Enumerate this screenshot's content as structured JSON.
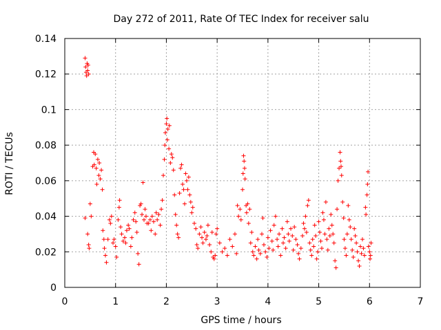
{
  "chart_data": {
    "type": "scatter",
    "title": "Day 272 of 2011, Rate Of TEC Index for receiver salu",
    "xlabel": "GPS time / hours",
    "ylabel": "ROTI / TECUs",
    "xlim": [
      0,
      7
    ],
    "ylim": [
      0,
      0.14
    ],
    "xticks": [
      0,
      1,
      2,
      3,
      4,
      5,
      6,
      7
    ],
    "yticks": [
      0,
      0.02,
      0.04,
      0.06,
      0.08,
      0.1,
      0.12,
      0.14
    ],
    "xtick_labels": [
      "0",
      "1",
      "2",
      "3",
      "4",
      "5",
      "6",
      "7"
    ],
    "ytick_labels": [
      "0",
      "0.02",
      "0.04",
      "0.06",
      "0.08",
      "0.1",
      "0.12",
      "0.14"
    ],
    "grid": true,
    "marker": "+",
    "colors": {
      "points": "#ff0000",
      "grid": "#a0a0a0",
      "frame": "#000000"
    },
    "series": [
      {
        "points": [
          [
            0.4,
            0.129
          ],
          [
            0.41,
            0.124
          ],
          [
            0.42,
            0.121
          ],
          [
            0.43,
            0.119
          ],
          [
            0.44,
            0.126
          ],
          [
            0.45,
            0.122
          ],
          [
            0.46,
            0.125
          ],
          [
            0.47,
            0.12
          ],
          [
            0.4,
            0.039
          ],
          [
            0.45,
            0.03
          ],
          [
            0.47,
            0.024
          ],
          [
            0.48,
            0.022
          ],
          [
            0.5,
            0.047
          ],
          [
            0.52,
            0.04
          ],
          [
            0.55,
            0.068
          ],
          [
            0.57,
            0.076
          ],
          [
            0.58,
            0.069
          ],
          [
            0.6,
            0.075
          ],
          [
            0.62,
            0.067
          ],
          [
            0.63,
            0.058
          ],
          [
            0.65,
            0.072
          ],
          [
            0.67,
            0.063
          ],
          [
            0.68,
            0.07
          ],
          [
            0.7,
            0.061
          ],
          [
            0.72,
            0.066
          ],
          [
            0.74,
            0.055
          ],
          [
            0.75,
            0.032
          ],
          [
            0.77,
            0.027
          ],
          [
            0.78,
            0.022
          ],
          [
            0.8,
            0.018
          ],
          [
            0.82,
            0.014
          ],
          [
            0.85,
            0.027
          ],
          [
            0.88,
            0.038
          ],
          [
            0.9,
            0.036
          ],
          [
            0.92,
            0.04
          ],
          [
            0.95,
            0.025
          ],
          [
            0.97,
            0.027
          ],
          [
            1.0,
            0.023
          ],
          [
            1.02,
            0.017
          ],
          [
            1.05,
            0.038
          ],
          [
            1.07,
            0.045
          ],
          [
            1.08,
            0.049
          ],
          [
            1.1,
            0.034
          ],
          [
            1.12,
            0.03
          ],
          [
            1.15,
            0.026
          ],
          [
            1.18,
            0.028
          ],
          [
            1.2,
            0.025
          ],
          [
            1.22,
            0.032
          ],
          [
            1.25,
            0.035
          ],
          [
            1.27,
            0.033
          ],
          [
            1.3,
            0.023
          ],
          [
            1.32,
            0.028
          ],
          [
            1.35,
            0.038
          ],
          [
            1.38,
            0.042
          ],
          [
            1.4,
            0.037
          ],
          [
            1.42,
            0.031
          ],
          [
            1.44,
            0.019
          ],
          [
            1.46,
            0.013
          ],
          [
            1.48,
            0.046
          ],
          [
            1.5,
            0.047
          ],
          [
            1.52,
            0.041
          ],
          [
            1.54,
            0.059
          ],
          [
            1.56,
            0.038
          ],
          [
            1.58,
            0.044
          ],
          [
            1.6,
            0.04
          ],
          [
            1.62,
            0.036
          ],
          [
            1.65,
            0.036
          ],
          [
            1.68,
            0.038
          ],
          [
            1.7,
            0.032
          ],
          [
            1.72,
            0.04
          ],
          [
            1.75,
            0.037
          ],
          [
            1.78,
            0.03
          ],
          [
            1.8,
            0.042
          ],
          [
            1.82,
            0.038
          ],
          [
            1.85,
            0.041
          ],
          [
            1.88,
            0.035
          ],
          [
            1.9,
            0.044
          ],
          [
            1.92,
            0.049
          ],
          [
            1.94,
            0.063
          ],
          [
            1.96,
            0.072
          ],
          [
            1.97,
            0.08
          ],
          [
            1.98,
            0.087
          ],
          [
            2.0,
            0.092
          ],
          [
            2.01,
            0.095
          ],
          [
            2.02,
            0.083
          ],
          [
            2.03,
            0.089
          ],
          [
            2.05,
            0.078
          ],
          [
            2.06,
            0.091
          ],
          [
            2.08,
            0.07
          ],
          [
            2.1,
            0.075
          ],
          [
            2.12,
            0.073
          ],
          [
            2.14,
            0.066
          ],
          [
            2.16,
            0.052
          ],
          [
            2.18,
            0.041
          ],
          [
            2.2,
            0.035
          ],
          [
            2.22,
            0.03
          ],
          [
            2.24,
            0.028
          ],
          [
            2.26,
            0.053
          ],
          [
            2.28,
            0.067
          ],
          [
            2.3,
            0.069
          ],
          [
            2.32,
            0.058
          ],
          [
            2.34,
            0.055
          ],
          [
            2.36,
            0.047
          ],
          [
            2.38,
            0.064
          ],
          [
            2.4,
            0.06
          ],
          [
            2.42,
            0.055
          ],
          [
            2.44,
            0.062
          ],
          [
            2.46,
            0.052
          ],
          [
            2.48,
            0.048
          ],
          [
            2.5,
            0.042
          ],
          [
            2.52,
            0.045
          ],
          [
            2.55,
            0.036
          ],
          [
            2.58,
            0.033
          ],
          [
            2.6,
            0.024
          ],
          [
            2.62,
            0.022
          ],
          [
            2.65,
            0.03
          ],
          [
            2.68,
            0.034
          ],
          [
            2.7,
            0.028
          ],
          [
            2.72,
            0.025
          ],
          [
            2.75,
            0.031
          ],
          [
            2.78,
            0.027
          ],
          [
            2.8,
            0.029
          ],
          [
            2.82,
            0.035
          ],
          [
            2.85,
            0.024
          ],
          [
            2.88,
            0.02
          ],
          [
            2.9,
            0.031
          ],
          [
            2.92,
            0.017
          ],
          [
            2.94,
            0.016
          ],
          [
            2.96,
            0.018
          ],
          [
            2.98,
            0.03
          ],
          [
            3.0,
            0.033
          ],
          [
            3.05,
            0.025
          ],
          [
            3.1,
            0.02
          ],
          [
            3.15,
            0.022
          ],
          [
            3.2,
            0.018
          ],
          [
            3.25,
            0.027
          ],
          [
            3.3,
            0.023
          ],
          [
            3.35,
            0.03
          ],
          [
            3.38,
            0.019
          ],
          [
            3.4,
            0.046
          ],
          [
            3.42,
            0.04
          ],
          [
            3.45,
            0.044
          ],
          [
            3.47,
            0.038
          ],
          [
            3.5,
            0.055
          ],
          [
            3.51,
            0.064
          ],
          [
            3.52,
            0.074
          ],
          [
            3.53,
            0.071
          ],
          [
            3.54,
            0.067
          ],
          [
            3.55,
            0.061
          ],
          [
            3.57,
            0.046
          ],
          [
            3.58,
            0.042
          ],
          [
            3.6,
            0.047
          ],
          [
            3.62,
            0.036
          ],
          [
            3.64,
            0.044
          ],
          [
            3.66,
            0.025
          ],
          [
            3.68,
            0.031
          ],
          [
            3.7,
            0.02
          ],
          [
            3.72,
            0.018
          ],
          [
            3.75,
            0.023
          ],
          [
            3.78,
            0.016
          ],
          [
            3.8,
            0.027
          ],
          [
            3.82,
            0.021
          ],
          [
            3.85,
            0.019
          ],
          [
            3.88,
            0.03
          ],
          [
            3.9,
            0.039
          ],
          [
            3.92,
            0.024
          ],
          [
            3.95,
            0.02
          ],
          [
            3.98,
            0.017
          ],
          [
            4.0,
            0.028
          ],
          [
            4.02,
            0.022
          ],
          [
            4.05,
            0.032
          ],
          [
            4.08,
            0.026
          ],
          [
            4.1,
            0.021
          ],
          [
            4.12,
            0.035
          ],
          [
            4.15,
            0.04
          ],
          [
            4.18,
            0.027
          ],
          [
            4.2,
            0.023
          ],
          [
            4.22,
            0.03
          ],
          [
            4.25,
            0.018
          ],
          [
            4.28,
            0.033
          ],
          [
            4.3,
            0.025
          ],
          [
            4.32,
            0.028
          ],
          [
            4.35,
            0.022
          ],
          [
            4.38,
            0.037
          ],
          [
            4.4,
            0.03
          ],
          [
            4.42,
            0.026
          ],
          [
            4.45,
            0.033
          ],
          [
            4.48,
            0.029
          ],
          [
            4.5,
            0.021
          ],
          [
            4.52,
            0.034
          ],
          [
            4.55,
            0.027
          ],
          [
            4.58,
            0.024
          ],
          [
            4.6,
            0.019
          ],
          [
            4.62,
            0.016
          ],
          [
            4.65,
            0.022
          ],
          [
            4.68,
            0.029
          ],
          [
            4.7,
            0.036
          ],
          [
            4.72,
            0.033
          ],
          [
            4.74,
            0.04
          ],
          [
            4.76,
            0.031
          ],
          [
            4.78,
            0.046
          ],
          [
            4.8,
            0.049
          ],
          [
            4.82,
            0.025
          ],
          [
            4.84,
            0.021
          ],
          [
            4.86,
            0.018
          ],
          [
            4.88,
            0.027
          ],
          [
            4.9,
            0.023
          ],
          [
            4.92,
            0.035
          ],
          [
            4.94,
            0.029
          ],
          [
            4.96,
            0.016
          ],
          [
            4.98,
            0.02
          ],
          [
            5.0,
            0.037
          ],
          [
            5.02,
            0.031
          ],
          [
            5.04,
            0.026
          ],
          [
            5.06,
            0.022
          ],
          [
            5.08,
            0.042
          ],
          [
            5.1,
            0.038
          ],
          [
            5.12,
            0.03
          ],
          [
            5.14,
            0.048
          ],
          [
            5.16,
            0.027
          ],
          [
            5.18,
            0.021
          ],
          [
            5.2,
            0.033
          ],
          [
            5.22,
            0.029
          ],
          [
            5.24,
            0.041
          ],
          [
            5.26,
            0.035
          ],
          [
            5.28,
            0.03
          ],
          [
            5.3,
            0.025
          ],
          [
            5.32,
            0.015
          ],
          [
            5.34,
            0.011
          ],
          [
            5.36,
            0.044
          ],
          [
            5.38,
            0.06
          ],
          [
            5.4,
            0.067
          ],
          [
            5.42,
            0.076
          ],
          [
            5.43,
            0.071
          ],
          [
            5.44,
            0.068
          ],
          [
            5.45,
            0.063
          ],
          [
            5.47,
            0.048
          ],
          [
            5.49,
            0.039
          ],
          [
            5.5,
            0.027
          ],
          [
            5.52,
            0.022
          ],
          [
            5.54,
            0.018
          ],
          [
            5.56,
            0.03
          ],
          [
            5.58,
            0.046
          ],
          [
            5.6,
            0.038
          ],
          [
            5.62,
            0.034
          ],
          [
            5.64,
            0.027
          ],
          [
            5.66,
            0.021
          ],
          [
            5.68,
            0.017
          ],
          [
            5.7,
            0.033
          ],
          [
            5.72,
            0.029
          ],
          [
            5.74,
            0.025
          ],
          [
            5.76,
            0.02
          ],
          [
            5.78,
            0.015
          ],
          [
            5.8,
            0.012
          ],
          [
            5.82,
            0.023
          ],
          [
            5.84,
            0.019
          ],
          [
            5.86,
            0.027
          ],
          [
            5.88,
            0.022
          ],
          [
            5.9,
            0.018
          ],
          [
            5.92,
            0.045
          ],
          [
            5.93,
            0.041
          ],
          [
            5.95,
            0.052
          ],
          [
            5.96,
            0.058
          ],
          [
            5.97,
            0.065
          ],
          [
            5.98,
            0.023
          ],
          [
            6.0,
            0.02
          ],
          [
            6.01,
            0.016
          ],
          [
            6.02,
            0.018
          ],
          [
            6.03,
            0.025
          ]
        ]
      }
    ]
  }
}
